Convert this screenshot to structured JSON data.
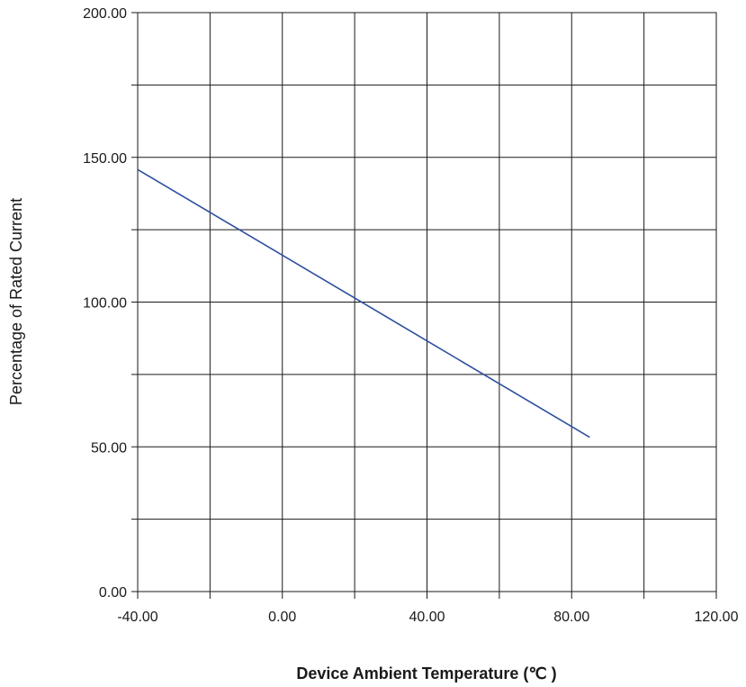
{
  "chart_data": {
    "type": "line",
    "title": "",
    "xlabel": "Device Ambient Temperature (℃ )",
    "ylabel": "Percentage of Rated Current",
    "xlim": [
      -40,
      120
    ],
    "ylim": [
      0,
      200
    ],
    "x_major_ticks": [
      -40,
      0,
      40,
      80,
      120
    ],
    "x_minor_step": 20,
    "y_major_ticks": [
      0,
      50,
      100,
      150,
      200
    ],
    "y_minor_step": 25,
    "x_tick_labels": [
      "-40.00",
      "0.00",
      "40.00",
      "80.00",
      "120.00"
    ],
    "y_tick_labels": [
      "0.00",
      "50.00",
      "100.00",
      "150.00",
      "200.00"
    ],
    "grid": true,
    "legend": "none",
    "series": [
      {
        "color": "#2e4fa0",
        "x": [
          -40,
          85
        ],
        "y": [
          145.8,
          53.3
        ]
      }
    ]
  }
}
